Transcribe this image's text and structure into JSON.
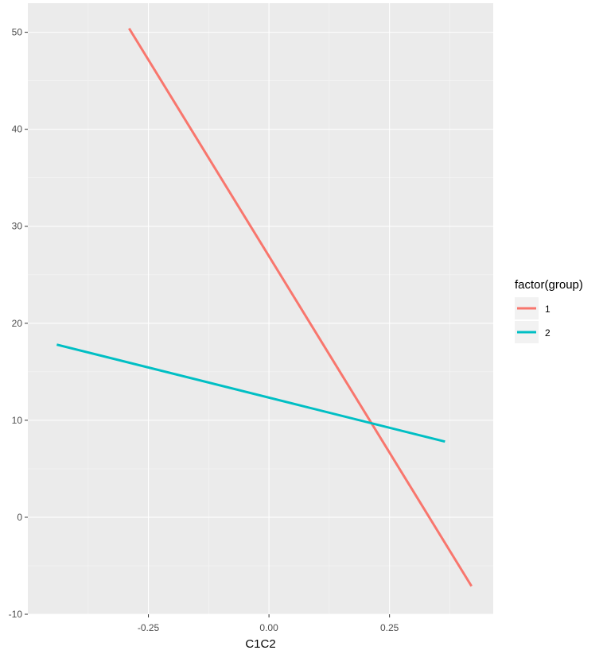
{
  "chart_data": {
    "type": "line",
    "xlabel": "C1C2",
    "ylabel": "",
    "xlim": [
      -0.5,
      0.465
    ],
    "ylim": [
      -10,
      53
    ],
    "x_ticks": [
      -0.25,
      0.0,
      0.25
    ],
    "x_tick_labels": [
      "-0.25",
      "0.00",
      "0.25"
    ],
    "y_ticks": [
      -10,
      0,
      10,
      20,
      30,
      40,
      50
    ],
    "y_tick_labels": [
      "-10",
      "0",
      "10",
      "20",
      "30",
      "40",
      "50"
    ],
    "grid": true,
    "legend": {
      "title": "factor(group)",
      "position": "right",
      "entries": [
        "1",
        "2"
      ]
    },
    "series": [
      {
        "name": "1",
        "color": "#F8766D",
        "x": [
          -0.29,
          0.42
        ],
        "y": [
          50.4,
          -7.1
        ]
      },
      {
        "name": "2",
        "color": "#00BFC4",
        "x": [
          -0.44,
          0.365
        ],
        "y": [
          17.8,
          7.8
        ]
      }
    ]
  }
}
